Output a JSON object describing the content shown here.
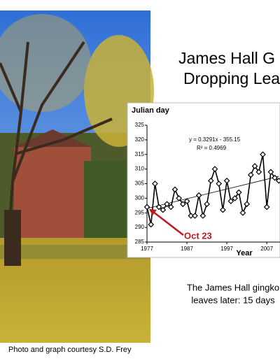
{
  "slide": {
    "title_lines": [
      "James Hall G",
      "Dropping Lea"
    ],
    "caption_lines": [
      "The James Hall gingko",
      "leaves later: 15 days"
    ],
    "credit": "Photo and graph courtesy S.D. Frey"
  },
  "chart_data": {
    "type": "line",
    "y_label": "Julian day",
    "x_label": "Year",
    "equation": "y = 0.3291x - 355.15",
    "r_squared": "R² = 0.4969",
    "annotation": "Oct 23",
    "x": [
      1977,
      1978,
      1979,
      1980,
      1981,
      1982,
      1983,
      1984,
      1985,
      1986,
      1987,
      1988,
      1989,
      1990,
      1991,
      1992,
      1993,
      1994,
      1995,
      1996,
      1997,
      1998,
      1999,
      2000,
      2001,
      2002,
      2003,
      2004,
      2005,
      2006,
      2007,
      2008,
      2009,
      2010
    ],
    "values": [
      297,
      291,
      305,
      297,
      296,
      298,
      297,
      303,
      300,
      298,
      299,
      294,
      294,
      301,
      294,
      298,
      306,
      310,
      305,
      296,
      306,
      299,
      300,
      302,
      295,
      298,
      308,
      311,
      309,
      315,
      297,
      309,
      307,
      306
    ],
    "color": "#000000",
    "trendline": {
      "x": [
        1977,
        2010
      ],
      "values": [
        296.5,
        307.5
      ],
      "color": "#000000"
    },
    "xlim": [
      1977,
      2010.3
    ],
    "xticks": [
      1977,
      1987,
      1997,
      2007
    ],
    "ylim": [
      285,
      325
    ],
    "yticks": [
      285,
      290,
      295,
      300,
      305,
      310,
      315,
      320,
      325
    ]
  }
}
